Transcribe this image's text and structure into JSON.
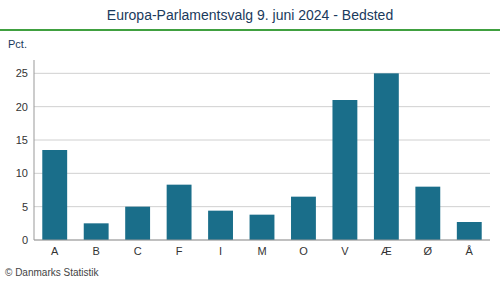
{
  "chart_data": {
    "type": "bar",
    "title": "Europa-Parlamentsvalg 9. juni 2024 - Bedsted",
    "ylabel": "Pct.",
    "categories": [
      "A",
      "B",
      "C",
      "F",
      "I",
      "M",
      "O",
      "V",
      "Æ",
      "Ø",
      "Å"
    ],
    "values": [
      13.5,
      2.5,
      5.0,
      8.3,
      4.4,
      3.8,
      6.5,
      21.0,
      25.0,
      8.0,
      2.7
    ],
    "color": "#1a6e8a",
    "ylim": [
      0,
      27
    ],
    "yticks": [
      0,
      5,
      10,
      15,
      20,
      25
    ],
    "grid": true,
    "annotations": [
      "© Danmarks Statistik"
    ]
  }
}
